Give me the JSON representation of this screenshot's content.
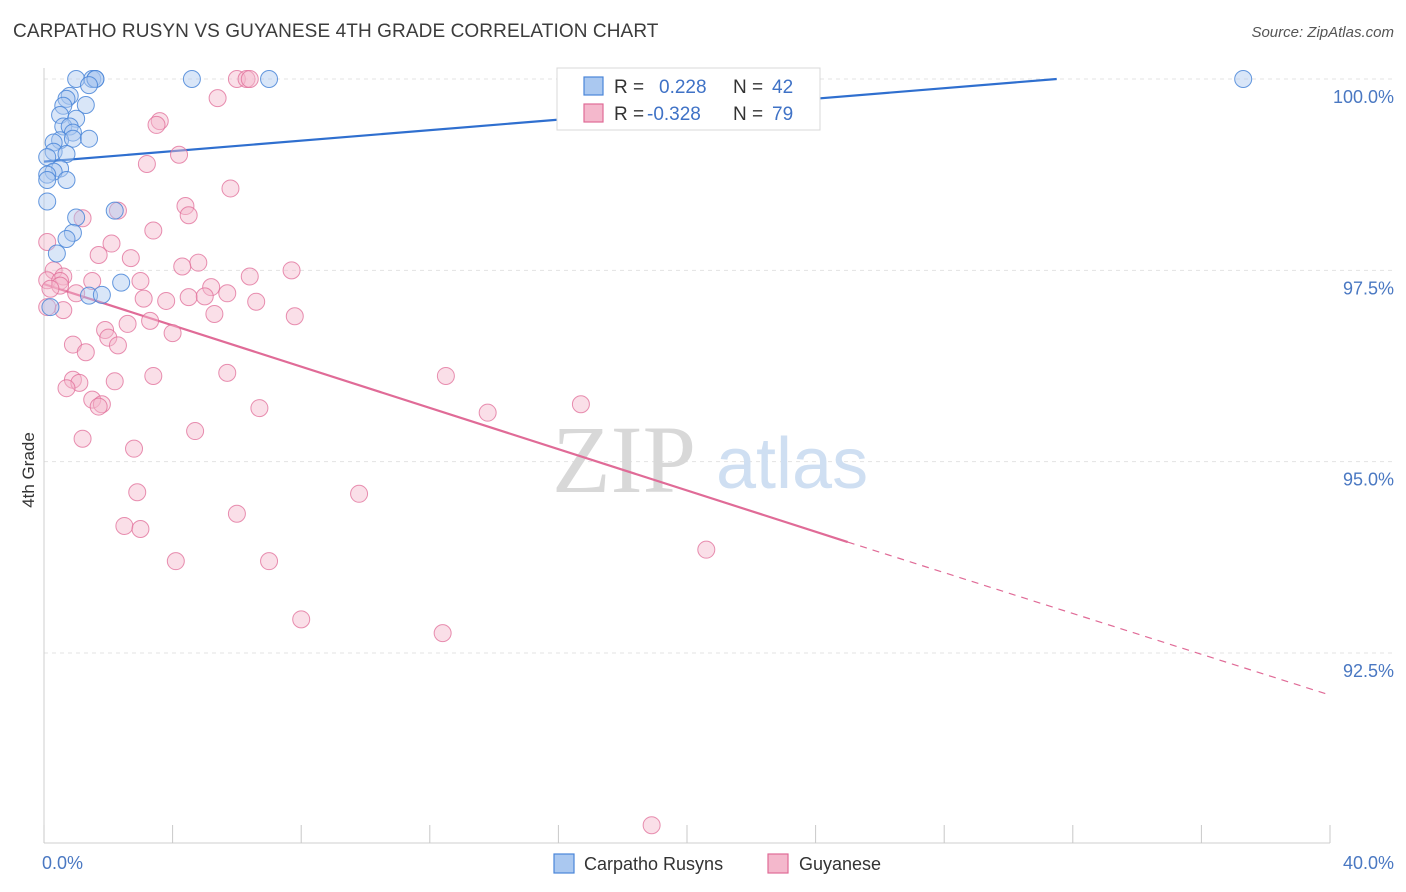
{
  "title": "CARPATHO RUSYN VS GUYANESE 4TH GRADE CORRELATION CHART",
  "source": "Source: ZipAtlas.com",
  "watermark": {
    "zip": "ZIP",
    "atlas": "atlas"
  },
  "colors": {
    "blue": "#4a86d8",
    "blue_fill": "#aac8f0",
    "pink": "#e06b97",
    "pink_fill": "#f4b8cc",
    "axis_text": "#4a78c2"
  },
  "chart_data": {
    "type": "scatter",
    "title": "CARPATHO RUSYN VS GUYANESE 4TH GRADE CORRELATION CHART",
    "xlabel": "",
    "ylabel": "4th Grade",
    "xlim": [
      0,
      40
    ],
    "ylim": [
      90.0,
      100.45
    ],
    "x_tick_labels": [
      "0.0%",
      "40.0%"
    ],
    "y_ticks": [
      {
        "value": 100.0,
        "label": "100.0%"
      },
      {
        "value": 97.5,
        "label": "97.5%"
      },
      {
        "value": 95.0,
        "label": "95.0%"
      },
      {
        "value": 92.5,
        "label": "92.5%"
      }
    ],
    "grid": true,
    "legend_position": "top-center",
    "stats": [
      {
        "r_label": "R =",
        "r_value": "0.228",
        "n_label": "N =",
        "n_value": "42"
      },
      {
        "r_label": "R =",
        "r_value": "-0.328",
        "n_label": "N =",
        "n_value": "79"
      }
    ],
    "series": [
      {
        "name": "Carpatho Rusyns",
        "color": "#4a86d8",
        "trend": {
          "x": [
            0,
            31.5
          ],
          "y": [
            98.92,
            100.0
          ]
        },
        "points": [
          [
            1.0,
            100.0
          ],
          [
            1.5,
            100.0
          ],
          [
            1.6,
            100.0
          ],
          [
            1.6,
            100.0
          ],
          [
            4.6,
            100.0
          ],
          [
            7.0,
            100.0
          ],
          [
            37.3,
            100.0
          ],
          [
            1.4,
            99.92
          ],
          [
            0.8,
            99.78
          ],
          [
            0.7,
            99.74
          ],
          [
            0.6,
            99.65
          ],
          [
            1.3,
            99.66
          ],
          [
            0.5,
            99.53
          ],
          [
            1.0,
            99.48
          ],
          [
            0.6,
            99.38
          ],
          [
            0.8,
            99.38
          ],
          [
            0.9,
            99.3
          ],
          [
            0.5,
            99.2
          ],
          [
            0.9,
            99.22
          ],
          [
            1.4,
            99.22
          ],
          [
            0.3,
            99.17
          ],
          [
            0.3,
            99.05
          ],
          [
            0.7,
            99.02
          ],
          [
            0.1,
            98.98
          ],
          [
            0.5,
            98.83
          ],
          [
            0.3,
            98.79
          ],
          [
            0.1,
            98.75
          ],
          [
            0.7,
            98.68
          ],
          [
            0.1,
            98.68
          ],
          [
            0.1,
            98.4
          ],
          [
            2.2,
            98.28
          ],
          [
            1.0,
            98.19
          ],
          [
            0.9,
            97.99
          ],
          [
            0.7,
            97.91
          ],
          [
            0.4,
            97.72
          ],
          [
            2.4,
            97.34
          ],
          [
            1.4,
            97.17
          ],
          [
            1.8,
            97.18
          ],
          [
            0.2,
            97.02
          ]
        ]
      },
      {
        "name": "Guyanese",
        "color": "#e06b97",
        "trend": {
          "x": [
            0,
            25.0
          ],
          "y": [
            97.32,
            93.95
          ]
        },
        "trend_dashed": {
          "x": [
            25.0,
            40.0
          ],
          "y": [
            93.95,
            91.95
          ]
        },
        "points": [
          [
            16.5,
            100.0
          ],
          [
            6.0,
            100.0
          ],
          [
            6.3,
            100.0
          ],
          [
            6.4,
            100.0
          ],
          [
            5.4,
            99.75
          ],
          [
            3.6,
            99.45
          ],
          [
            3.5,
            99.4
          ],
          [
            4.2,
            99.01
          ],
          [
            3.2,
            98.89
          ],
          [
            5.8,
            98.57
          ],
          [
            4.4,
            98.34
          ],
          [
            4.5,
            98.22
          ],
          [
            2.3,
            98.28
          ],
          [
            1.2,
            98.18
          ],
          [
            3.4,
            98.02
          ],
          [
            0.1,
            97.87
          ],
          [
            2.1,
            97.85
          ],
          [
            1.7,
            97.7
          ],
          [
            2.7,
            97.66
          ],
          [
            4.8,
            97.6
          ],
          [
            4.3,
            97.55
          ],
          [
            7.7,
            97.5
          ],
          [
            0.3,
            97.5
          ],
          [
            0.6,
            97.42
          ],
          [
            3.0,
            97.36
          ],
          [
            6.4,
            97.42
          ],
          [
            5.2,
            97.28
          ],
          [
            1.5,
            97.36
          ],
          [
            0.1,
            97.37
          ],
          [
            0.5,
            97.36
          ],
          [
            0.5,
            97.3
          ],
          [
            0.2,
            97.26
          ],
          [
            1.0,
            97.2
          ],
          [
            3.1,
            97.13
          ],
          [
            3.8,
            97.1
          ],
          [
            4.5,
            97.15
          ],
          [
            5.7,
            97.2
          ],
          [
            5.0,
            97.16
          ],
          [
            6.6,
            97.09
          ],
          [
            0.6,
            96.98
          ],
          [
            5.3,
            96.93
          ],
          [
            3.3,
            96.84
          ],
          [
            7.8,
            96.9
          ],
          [
            0.1,
            97.02
          ],
          [
            2.6,
            96.8
          ],
          [
            1.9,
            96.72
          ],
          [
            2.0,
            96.62
          ],
          [
            4.0,
            96.68
          ],
          [
            0.9,
            96.53
          ],
          [
            2.3,
            96.52
          ],
          [
            1.3,
            96.43
          ],
          [
            5.7,
            96.16
          ],
          [
            3.4,
            96.12
          ],
          [
            0.9,
            96.07
          ],
          [
            2.2,
            96.05
          ],
          [
            1.1,
            96.03
          ],
          [
            12.5,
            96.12
          ],
          [
            0.7,
            95.96
          ],
          [
            1.5,
            95.81
          ],
          [
            1.8,
            95.75
          ],
          [
            1.7,
            95.72
          ],
          [
            6.7,
            95.7
          ],
          [
            13.8,
            95.64
          ],
          [
            16.7,
            95.75
          ],
          [
            4.7,
            95.4
          ],
          [
            1.2,
            95.3
          ],
          [
            2.8,
            95.17
          ],
          [
            2.9,
            94.6
          ],
          [
            9.8,
            94.58
          ],
          [
            6.0,
            94.32
          ],
          [
            2.5,
            94.16
          ],
          [
            3.0,
            94.12
          ],
          [
            20.6,
            93.85
          ],
          [
            4.1,
            93.7
          ],
          [
            7.0,
            93.7
          ],
          [
            8.0,
            92.94
          ],
          [
            12.4,
            92.76
          ],
          [
            18.9,
            90.25
          ]
        ]
      }
    ]
  }
}
